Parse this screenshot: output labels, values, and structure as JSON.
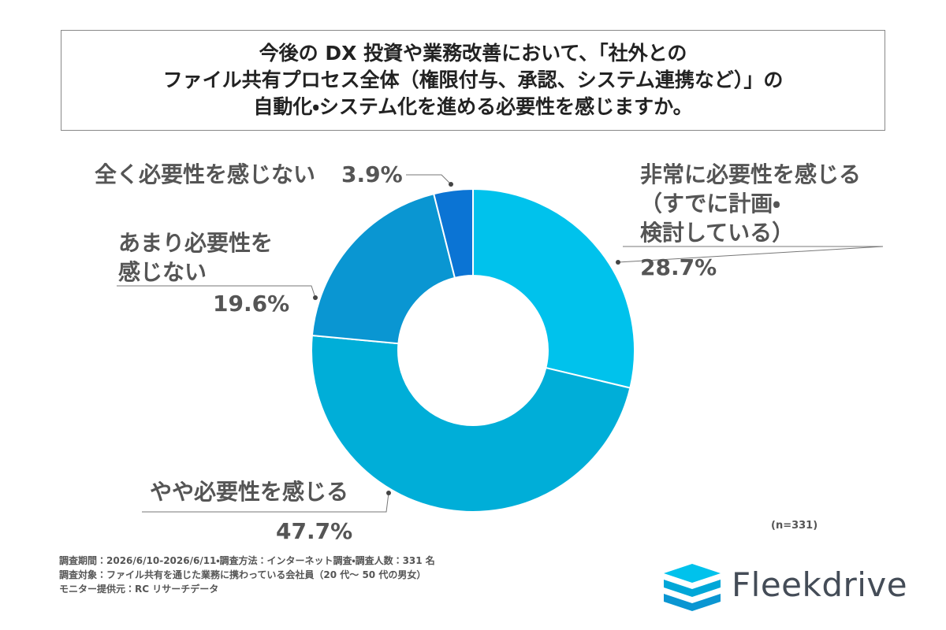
{
  "chart_data": {
    "type": "pie",
    "title": "今後の DX 投資や業務改善において、「社外との\nファイル共有プロセス全体（権限付与、承認、システム連携など）」の\n自動化・システム化を進める必要性を感じますか。",
    "categories": [
      "非常に必要性を感じる\n（すでに計画・\n検討している）",
      "やや必要性を感じる",
      "あまり必要性を\n感じない",
      "全く必要性を感じない"
    ],
    "values": [
      28.7,
      47.7,
      19.6,
      3.9
    ],
    "value_labels": [
      "28.7%",
      "47.7%",
      "19.6%",
      "3.9%"
    ],
    "colors": [
      "#00c2ec",
      "#00aed8",
      "#0a96d2",
      "#0b74d4"
    ],
    "donut": true,
    "annotation": "(n=331)",
    "footnotes": [
      "調査期間：2026/6/10-2026/6/11・調査方法：インターネット調査・調査人数：331 名",
      "調査対象：ファイル共有を通じた業務に携わっている会社員（20 代～ 50 代の男女）",
      "モニター提供元：RC リサーチデータ"
    ],
    "brand": "Fleekdrive"
  }
}
